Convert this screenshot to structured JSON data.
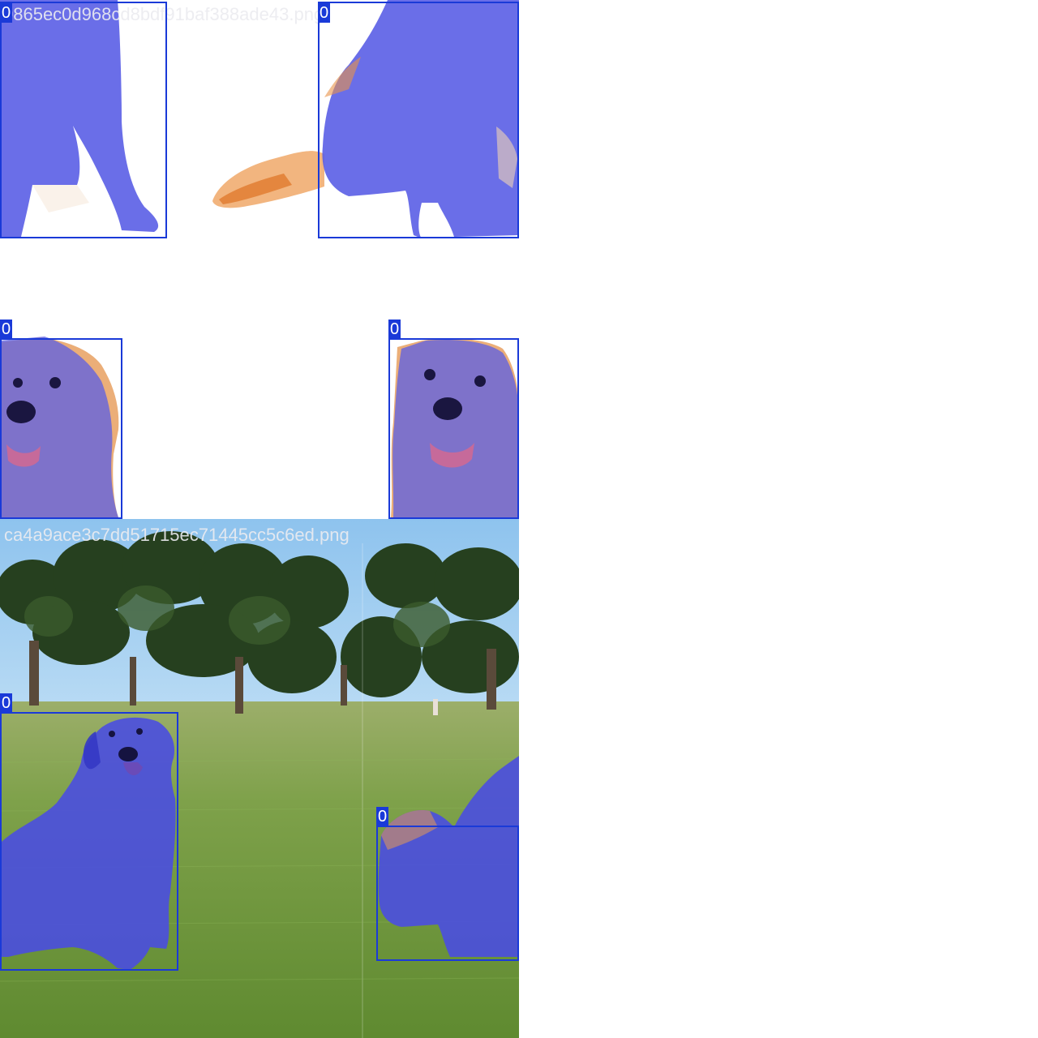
{
  "top_tile": {
    "filename": "0865ec0d968cd8bdf91baf388ade43.png",
    "detections": [
      {
        "id": "top-left",
        "class_label": "0"
      },
      {
        "id": "top-right",
        "class_label": "0"
      }
    ]
  },
  "middle_tile": {
    "detections": [
      {
        "id": "mid-left",
        "class_label": "0"
      },
      {
        "id": "mid-right",
        "class_label": "0"
      }
    ]
  },
  "bottom_tile": {
    "filename": "ca4a9ace3c7dd51715ec71445cc5c6ed.png",
    "detections": [
      {
        "id": "bottom-left",
        "class_label": "0"
      },
      {
        "id": "bottom-right",
        "class_label": "0"
      }
    ]
  },
  "colors": {
    "box": "#1a3ad8",
    "mask": "#4a4ee0",
    "fur": "#e89a52",
    "grass": "#6f9a3c",
    "sky": "#8ec3ee"
  }
}
